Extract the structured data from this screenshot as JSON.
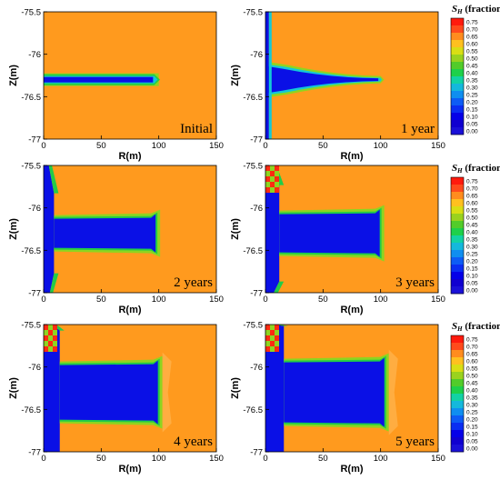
{
  "chart_data": {
    "type": "heatmap",
    "colorbar": {
      "title_main": "S",
      "title_sub": "H",
      "title_unit": "(fraction)",
      "ticks": [
        "0.75",
        "0.70",
        "0.65",
        "0.60",
        "0.55",
        "0.50",
        "0.45",
        "0.40",
        "0.35",
        "0.30",
        "0.25",
        "0.20",
        "0.15",
        "0.10",
        "0.05",
        "0.00"
      ],
      "colors": [
        "#ff1a0d",
        "#ff4a1c",
        "#ff8c1e",
        "#ffc01f",
        "#d9de14",
        "#9ad21e",
        "#52cc2a",
        "#1ed04a",
        "#12d2a4",
        "#14b8dc",
        "#0f8ef0",
        "#0d5cf5",
        "#0a2ef2",
        "#0500e8",
        "#1000d0",
        "#1a10d8"
      ]
    },
    "panels": [
      {
        "label": "Initial",
        "xlabel": "R(m)",
        "ylabel": "Z(m)",
        "xticks": [
          "0",
          "50",
          "100",
          "150"
        ],
        "yticks": [
          "-75.5",
          "-76",
          "-76.5",
          "-77"
        ],
        "xlim": [
          0,
          150
        ],
        "ylim": [
          -77,
          -75.5
        ],
        "stage": 0
      },
      {
        "label": "1 year",
        "xlabel": "R(m)",
        "ylabel": "Z(m)",
        "xticks": [
          "0",
          "50",
          "100",
          "150"
        ],
        "yticks": [
          "-75.5",
          "-76",
          "-76.5",
          "-77"
        ],
        "xlim": [
          0,
          150
        ],
        "ylim": [
          -77,
          -75.5
        ],
        "stage": 1
      },
      {
        "label": "2 years",
        "xlabel": "R(m)",
        "ylabel": "Z(m)",
        "xticks": [
          "0",
          "50",
          "100",
          "150"
        ],
        "yticks": [
          "-75.5",
          "-76",
          "-76.5",
          "-77"
        ],
        "xlim": [
          0,
          150
        ],
        "ylim": [
          -77,
          -75.5
        ],
        "stage": 2
      },
      {
        "label": "3 years",
        "xlabel": "R(m)",
        "ylabel": "Z(m)",
        "xticks": [
          "0",
          "50",
          "100",
          "150"
        ],
        "yticks": [
          "-75.5",
          "-76",
          "-76.5",
          "-77"
        ],
        "xlim": [
          0,
          150
        ],
        "ylim": [
          -77,
          -75.5
        ],
        "stage": 3
      },
      {
        "label": "4 years",
        "xlabel": "R(m)",
        "ylabel": "Z(m)",
        "xticks": [
          "0",
          "50",
          "100",
          "150"
        ],
        "yticks": [
          "-75.5",
          "-76",
          "-76.5",
          "-77"
        ],
        "xlim": [
          0,
          150
        ],
        "ylim": [
          -77,
          -75.5
        ],
        "stage": 4
      },
      {
        "label": "5 years",
        "xlabel": "R(m)",
        "ylabel": "Z(m)",
        "xticks": [
          "0",
          "50",
          "100",
          "150"
        ],
        "yticks": [
          "-75.5",
          "-76",
          "-76.5",
          "-77"
        ],
        "xlim": [
          0,
          150
        ],
        "ylim": [
          -77,
          -75.5
        ],
        "stage": 5
      }
    ],
    "background_value": 0.65,
    "background_color": "#ff9a1e"
  }
}
